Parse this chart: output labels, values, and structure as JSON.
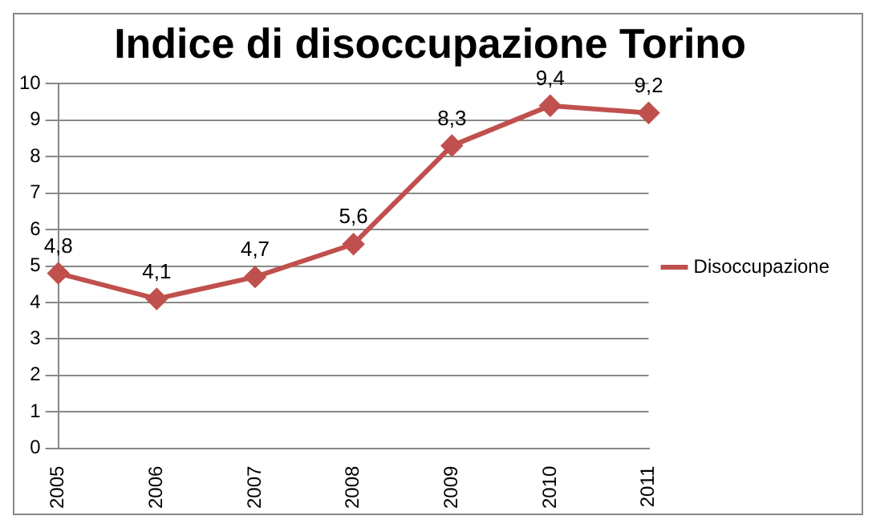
{
  "chart_data": {
    "type": "line",
    "title": "Indice di disoccupazione Torino",
    "categories": [
      "2005",
      "2006",
      "2007",
      "2008",
      "2009",
      "2010",
      "2011"
    ],
    "series": [
      {
        "name": "Disoccupazione",
        "color": "#c0504d",
        "values": [
          4.8,
          4.1,
          4.7,
          5.6,
          8.3,
          9.4,
          9.2
        ],
        "value_labels": [
          "4,8",
          "4,1",
          "4,7",
          "5,6",
          "8,3",
          "9,4",
          "9,2"
        ]
      }
    ],
    "ylim": [
      0,
      10
    ],
    "yticks": [
      0,
      1,
      2,
      3,
      4,
      5,
      6,
      7,
      8,
      9,
      10
    ],
    "grid": "y",
    "legend": "right",
    "marker": "diamond",
    "line_style": "solid"
  }
}
